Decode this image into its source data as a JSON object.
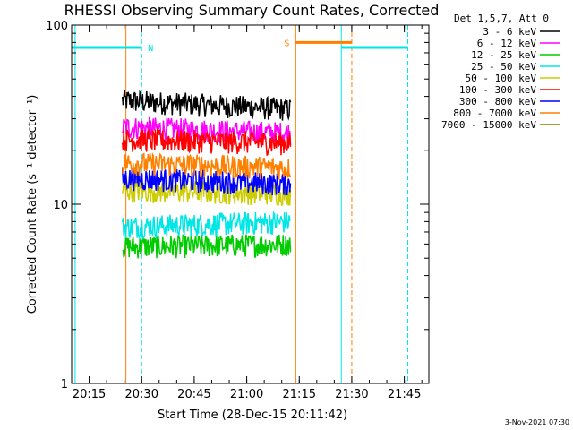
{
  "chart_data": {
    "type": "line",
    "title": "RHESSI Observing Summary Count Rates, Corrected",
    "xlabel": "Start Time (28-Dec-15 20:11:42)",
    "ylabel": "Corrected Count Rate (s⁻¹ detector⁻¹)",
    "yscale": "log",
    "ylim": [
      1,
      100
    ],
    "xlim": [
      "20:10",
      "21:52"
    ],
    "x_ticks": [
      "20:15",
      "20:30",
      "20:45",
      "21:00",
      "21:15",
      "21:30",
      "21:45"
    ],
    "y_ticks": [
      "1",
      "10",
      "100"
    ],
    "grid": false,
    "legend_placement": "right",
    "legend_title": "Det 1,5,7, Att 0",
    "timestamp": "3-Nov-2021 07:30",
    "data_start": "20:24.5",
    "data_end": "21:12.5",
    "series": [
      {
        "name": "3 - 6 keV",
        "color": "#000000",
        "level_start": 38,
        "level_end": 34
      },
      {
        "name": "6 - 12 keV",
        "color": "#ff00ff",
        "level_start": 27,
        "level_end": 25
      },
      {
        "name": "12 - 25 keV",
        "color": "#00cc00",
        "level_start": 5.8,
        "level_end": 6.0
      },
      {
        "name": "25 - 50 keV",
        "color": "#00e5e5",
        "level_start": 7.5,
        "level_end": 8.0
      },
      {
        "name": "50 - 100 keV",
        "color": "#cccc00",
        "level_start": 12,
        "level_end": 11.5
      },
      {
        "name": "100 - 300 keV",
        "color": "#ff0000",
        "level_start": 23,
        "level_end": 22
      },
      {
        "name": "300 - 800 keV",
        "color": "#0000ff",
        "level_start": 14,
        "level_end": 13
      },
      {
        "name": "800 - 7000 keV",
        "color": "#ff8000",
        "level_start": 17,
        "level_end": 16
      },
      {
        "name": "7000 - 15000 keV",
        "color": "#808000",
        "level_start": 0,
        "level_end": 0
      }
    ],
    "annotations": [
      {
        "type": "night",
        "label": "N",
        "from": "20:10",
        "to": "20:30",
        "level": 75
      },
      {
        "type": "night",
        "label": "",
        "from": "21:27",
        "to": "21:46",
        "level": 75
      },
      {
        "type": "saa",
        "label": "S",
        "from": "21:14",
        "to": "21:30",
        "level": 80
      }
    ],
    "vlines": [
      {
        "time": "20:11",
        "color": "#00e5e5",
        "style": "solid"
      },
      {
        "time": "20:30",
        "color": "#00e5e5",
        "style": "dashed"
      },
      {
        "time": "21:27",
        "color": "#00e5e5",
        "style": "solid"
      },
      {
        "time": "21:46",
        "color": "#00e5e5",
        "style": "dashed"
      },
      {
        "time": "20:25.5",
        "color": "#ff8000",
        "style": "solid"
      },
      {
        "time": "21:14",
        "color": "#ff8000",
        "style": "solid"
      },
      {
        "time": "21:30",
        "color": "#ff8000",
        "style": "dashed"
      }
    ]
  }
}
